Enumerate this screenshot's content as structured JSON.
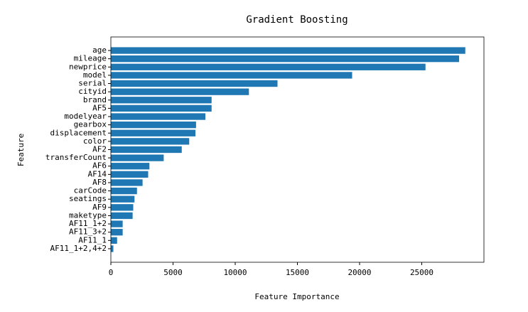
{
  "chart_data": {
    "type": "barh",
    "title": "Gradient Boosting",
    "x_label": "Feature Importance",
    "y_label": "Feature",
    "categories": [
      "age",
      "mileage",
      "newprice",
      "model",
      "serial",
      "cityid",
      "brand",
      "AF5",
      "modelyear",
      "gearbox",
      "displacement",
      "color",
      "AF2",
      "transferCount",
      "AF6",
      "AF14",
      "AF8",
      "carCode",
      "seatings",
      "AF9",
      "maketype",
      "AF11_1+2",
      "AF11_3+2",
      "AF11_1",
      "AF11_1+2,4+2"
    ],
    "values": [
      28500,
      28000,
      25300,
      19400,
      13400,
      11100,
      8100,
      8100,
      7600,
      6850,
      6800,
      6300,
      5700,
      4250,
      3100,
      3000,
      2550,
      2100,
      1900,
      1800,
      1750,
      950,
      950,
      500,
      200
    ],
    "color": "#1f77b4",
    "xlim": [
      0,
      30000
    ],
    "xticks": [
      0,
      5000,
      10000,
      15000,
      20000,
      25000
    ]
  }
}
